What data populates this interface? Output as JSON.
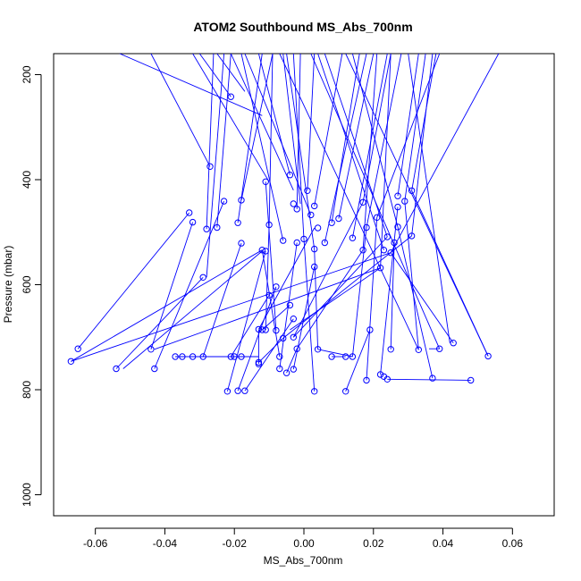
{
  "chart_data": {
    "type": "line",
    "title": "ATOM2 Southbound MS_Abs_700nm",
    "xlabel": "MS_Abs_700nm",
    "ylabel": "Pressure (mbar)",
    "xlim": [
      -0.072,
      0.072
    ],
    "ylim": [
      1040,
      160
    ],
    "y_reversed": true,
    "x_ticks": [
      -0.06,
      -0.04,
      -0.02,
      0.0,
      0.02,
      0.04,
      0.06
    ],
    "x_tick_labels": [
      "-0.06",
      "-0.04",
      "-0.02",
      "0.00",
      "0.02",
      "0.04",
      "0.06"
    ],
    "y_ticks": [
      200,
      400,
      600,
      800,
      1000
    ],
    "y_tick_labels": [
      "200",
      "400",
      "600",
      "800",
      "1000"
    ],
    "grid": false,
    "series_color": "#0000ff",
    "marker": "open-circle",
    "points": [
      [
        -0.021,
        242
      ],
      [
        -0.027,
        375
      ],
      [
        -0.011,
        404
      ],
      [
        -0.023,
        441
      ],
      [
        -0.033,
        463
      ],
      [
        -0.018,
        439
      ],
      [
        -0.032,
        481
      ],
      [
        -0.019,
        482
      ],
      [
        -0.028,
        494
      ],
      [
        -0.025,
        491
      ],
      [
        -0.018,
        521
      ],
      [
        -0.029,
        586
      ],
      [
        -0.01,
        486
      ],
      [
        -0.012,
        534
      ],
      [
        -0.011,
        536
      ],
      [
        -0.006,
        516
      ],
      [
        -0.01,
        620
      ],
      [
        -0.008,
        604
      ],
      [
        -0.004,
        391
      ],
      [
        -0.003,
        446
      ],
      [
        -0.002,
        456
      ],
      [
        0.001,
        421
      ],
      [
        0.003,
        450
      ],
      [
        0.002,
        467
      ],
      [
        0.0,
        513
      ],
      [
        -0.002,
        520
      ],
      [
        0.004,
        492
      ],
      [
        0.003,
        532
      ],
      [
        0.003,
        566
      ],
      [
        0.006,
        520
      ],
      [
        0.008,
        482
      ],
      [
        0.01,
        474
      ],
      [
        0.014,
        511
      ],
      [
        0.017,
        443
      ],
      [
        0.018,
        491
      ],
      [
        0.017,
        534
      ],
      [
        0.021,
        472
      ],
      [
        0.027,
        431
      ],
      [
        0.027,
        452
      ],
      [
        0.029,
        441
      ],
      [
        0.031,
        421
      ],
      [
        0.027,
        490
      ],
      [
        0.026,
        520
      ],
      [
        0.025,
        539
      ],
      [
        0.023,
        534
      ],
      [
        0.024,
        509
      ],
      [
        0.031,
        507
      ],
      [
        0.022,
        568
      ],
      [
        -0.004,
        639
      ],
      [
        -0.003,
        665
      ],
      [
        -0.012,
        686
      ],
      [
        -0.011,
        686
      ],
      [
        -0.013,
        685
      ],
      [
        -0.008,
        687
      ],
      [
        -0.007,
        737
      ],
      [
        -0.006,
        702
      ],
      [
        -0.003,
        700
      ],
      [
        -0.002,
        722
      ],
      [
        -0.065,
        722
      ],
      [
        -0.067,
        746
      ],
      [
        -0.054,
        760
      ],
      [
        -0.044,
        723
      ],
      [
        -0.043,
        760
      ],
      [
        -0.037,
        737
      ],
      [
        -0.035,
        737
      ],
      [
        -0.032,
        737
      ],
      [
        -0.029,
        737
      ],
      [
        -0.021,
        737
      ],
      [
        -0.02,
        737
      ],
      [
        -0.018,
        737
      ],
      [
        -0.013,
        748
      ],
      [
        -0.013,
        751
      ],
      [
        -0.007,
        760
      ],
      [
        -0.005,
        768
      ],
      [
        -0.003,
        761
      ],
      [
        -0.022,
        803
      ],
      [
        -0.019,
        802
      ],
      [
        -0.017,
        802
      ],
      [
        0.003,
        803
      ],
      [
        0.012,
        803
      ],
      [
        0.004,
        723
      ],
      [
        0.008,
        737
      ],
      [
        0.012,
        737
      ],
      [
        0.014,
        737
      ],
      [
        0.019,
        686
      ],
      [
        0.025,
        723
      ],
      [
        0.033,
        724
      ],
      [
        0.039,
        722
      ],
      [
        0.043,
        711
      ],
      [
        0.053,
        736
      ],
      [
        0.018,
        782
      ],
      [
        0.022,
        771
      ],
      [
        0.023,
        775
      ],
      [
        0.024,
        780
      ],
      [
        0.037,
        778
      ],
      [
        0.048,
        782
      ]
    ],
    "segments": [
      [
        -0.053,
        160,
        -0.012,
        278
      ],
      [
        -0.044,
        160,
        -0.027,
        375
      ],
      [
        -0.03,
        160,
        -0.021,
        242
      ],
      [
        -0.025,
        160,
        -0.017,
        232
      ],
      [
        -0.032,
        160,
        -0.01,
        404
      ],
      [
        -0.021,
        160,
        -0.003,
        420
      ],
      [
        -0.013,
        160,
        -0.004,
        391
      ],
      [
        -0.006,
        160,
        -0.001,
        446
      ],
      [
        -0.001,
        160,
        -0.002,
        456
      ],
      [
        0.003,
        160,
        0.001,
        421
      ],
      [
        0.011,
        160,
        0.003,
        450
      ],
      [
        -0.017,
        160,
        0.002,
        467
      ],
      [
        0.016,
        160,
        0.008,
        482
      ],
      [
        0.02,
        160,
        0.01,
        474
      ],
      [
        0.025,
        160,
        0.017,
        443
      ],
      [
        0.028,
        160,
        0.018,
        491
      ],
      [
        0.033,
        160,
        0.027,
        431
      ],
      [
        0.035,
        160,
        0.029,
        441
      ],
      [
        0.038,
        160,
        0.031,
        421
      ],
      [
        0.014,
        160,
        0.027,
        490
      ],
      [
        0.006,
        160,
        0.024,
        509
      ],
      [
        0.004,
        160,
        0.023,
        534
      ],
      [
        0.056,
        160,
        0.025,
        539
      ],
      [
        0.037,
        160,
        0.031,
        507
      ],
      [
        0.025,
        160,
        0.022,
        568
      ],
      [
        -0.021,
        160,
        -0.025,
        491
      ],
      [
        -0.009,
        160,
        -0.018,
        439
      ],
      [
        -0.012,
        160,
        -0.019,
        482
      ],
      [
        -0.026,
        160,
        -0.028,
        494
      ],
      [
        -0.023,
        160,
        -0.028,
        586
      ],
      [
        -0.018,
        160,
        -0.006,
        516
      ],
      [
        -0.009,
        160,
        -0.01,
        486
      ],
      [
        -0.003,
        160,
        0.0,
        513
      ],
      [
        -0.005,
        160,
        0.003,
        532
      ],
      [
        0.018,
        160,
        0.006,
        520
      ],
      [
        0.024,
        160,
        0.014,
        511
      ],
      [
        0.03,
        160,
        0.042,
        711
      ],
      [
        0.039,
        160,
        0.021,
        472
      ],
      [
        -0.007,
        160,
        0.033,
        724
      ],
      [
        0.002,
        160,
        0.039,
        722
      ],
      [
        0.012,
        160,
        0.053,
        736
      ],
      [
        0.021,
        160,
        0.017,
        534
      ],
      [
        -0.065,
        722,
        -0.033,
        463
      ],
      [
        -0.067,
        746,
        -0.012,
        534
      ],
      [
        -0.054,
        760,
        -0.029,
        586
      ],
      [
        -0.044,
        723,
        -0.032,
        481
      ],
      [
        -0.043,
        760,
        -0.023,
        441
      ],
      [
        -0.029,
        737,
        -0.018,
        521
      ],
      [
        -0.021,
        737,
        -0.01,
        620
      ],
      [
        -0.022,
        803,
        -0.011,
        536
      ],
      [
        -0.019,
        802,
        -0.008,
        604
      ],
      [
        -0.017,
        802,
        -0.003,
        665
      ],
      [
        -0.013,
        748,
        -0.006,
        702
      ],
      [
        -0.007,
        760,
        -0.002,
        520
      ],
      [
        -0.005,
        768,
        -0.002,
        722
      ],
      [
        -0.003,
        761,
        0.003,
        566
      ],
      [
        -0.013,
        685,
        0.003,
        492
      ],
      [
        -0.012,
        686,
        -0.004,
        639
      ],
      [
        -0.011,
        686,
        -0.01,
        486
      ],
      [
        -0.008,
        687,
        -0.011,
        404
      ],
      [
        -0.007,
        737,
        -0.012,
        534
      ],
      [
        -0.003,
        700,
        0.024,
        509
      ],
      [
        -0.006,
        702,
        0.031,
        507
      ],
      [
        -0.004,
        686,
        0.022,
        568
      ],
      [
        -0.002,
        722,
        0.017,
        534
      ],
      [
        0.004,
        723,
        0.014,
        737
      ],
      [
        0.008,
        737,
        0.012,
        737
      ],
      [
        0.012,
        803,
        0.019,
        686
      ],
      [
        0.014,
        737,
        0.018,
        491
      ],
      [
        0.018,
        782,
        0.021,
        472
      ],
      [
        0.022,
        771,
        0.027,
        452
      ],
      [
        0.025,
        723,
        0.026,
        520
      ],
      [
        0.033,
        724,
        0.029,
        441
      ],
      [
        0.037,
        778,
        0.027,
        490
      ],
      [
        0.048,
        782,
        0.024,
        780
      ],
      [
        0.039,
        722,
        0.036,
        722
      ],
      [
        0.053,
        736,
        0.031,
        421
      ],
      [
        0.043,
        711,
        0.025,
        539
      ],
      [
        -0.037,
        737,
        -0.013,
        737
      ],
      [
        -0.035,
        737,
        -0.018,
        737
      ],
      [
        -0.013,
        751,
        -0.013,
        686
      ],
      [
        -0.052,
        760,
        -0.012,
        536
      ],
      [
        -0.003,
        700,
        0.017,
        443
      ],
      [
        0.003,
        803,
        0.0,
        513
      ],
      [
        0.004,
        723,
        0.003,
        532
      ],
      [
        -0.043,
        723,
        0.022,
        568
      ],
      [
        -0.067,
        746,
        0.025,
        539
      ]
    ]
  }
}
